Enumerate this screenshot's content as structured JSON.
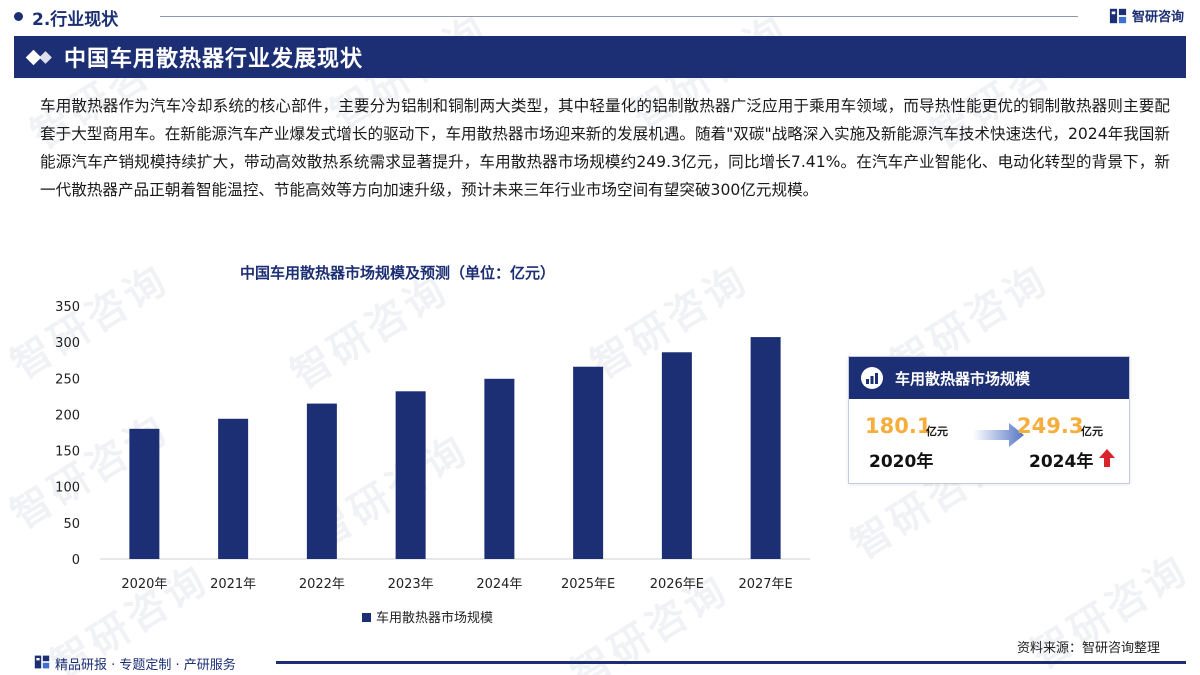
{
  "header": {
    "section_title": "2.行业现状",
    "brand_name": "智研咨询",
    "main_title": "中国车用散热器行业发展现状"
  },
  "body_text": "车用散热器作为汽车冷却系统的核心部件，主要分为铝制和铜制两大类型，其中轻量化的铝制散热器广泛应用于乘用车领域，而导热性能更优的铜制散热器则主要配套于大型商用车。在新能源汽车产业爆发式增长的驱动下，车用散热器市场迎来新的发展机遇。随着\"双碳\"战略深入实施及新能源汽车技术快速迭代，2024年我国新能源汽车产销规模持续扩大，带动高效散热系统需求显著提升，车用散热器市场规模约249.3亿元，同比增长7.41%。在汽车产业智能化、电动化转型的背景下，新一代散热器产品正朝着智能温控、节能高效等方向加速升级，预计未来三年行业市场空间有望突破300亿元规模。",
  "chart_data": {
    "type": "bar",
    "title": "中国车用散热器市场规模及预测（单位：亿元）",
    "categories": [
      "2020年",
      "2021年",
      "2022年",
      "2023年",
      "2024年",
      "2025年E",
      "2026年E",
      "2027年E"
    ],
    "series": [
      {
        "name": "车用散热器市场规模",
        "values": [
          180.1,
          194,
          215,
          232,
          249.3,
          266,
          286,
          307
        ]
      }
    ],
    "ylim": [
      0,
      350
    ],
    "yticks": [
      0,
      50,
      100,
      150,
      200,
      250,
      300,
      350
    ],
    "bar_color": "#1c2f74",
    "legend_position": "bottom",
    "grid": false
  },
  "kpi": {
    "title": "车用散热器市场规模",
    "from_value": "180.1",
    "from_unit": "亿元",
    "from_year": "2020年",
    "to_value": "249.3",
    "to_unit": "亿元",
    "to_year": "2024年",
    "trend": "up",
    "value_color": "#f5ae3c",
    "trend_color": "#d9232a"
  },
  "source": "资料来源：智研咨询整理",
  "footer": {
    "tagline": "精品研报 · 专题定制 · 产研服务"
  },
  "colors": {
    "brand": "#1c2f74",
    "accent": "#f5ae3c"
  }
}
